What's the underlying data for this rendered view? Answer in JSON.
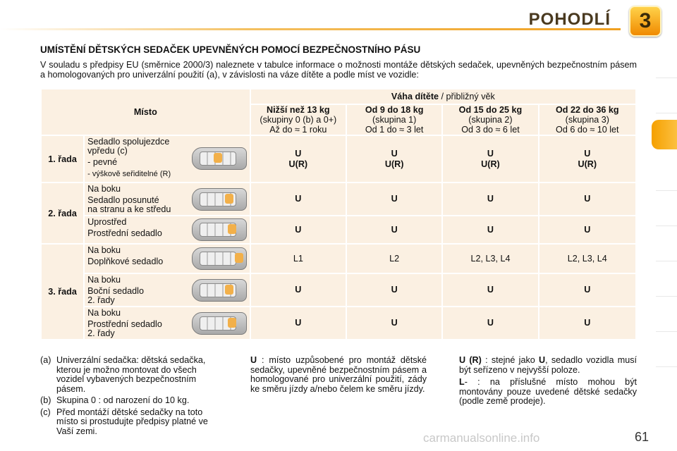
{
  "header": {
    "title": "POHODLÍ",
    "chapter": "3"
  },
  "section_title": "UMÍSTĚNÍ DĚTSKÝCH SEDAČEK UPEVNĚNÝCH POMOCÍ BEZPEČNOSTNÍHO PÁSU",
  "intro": "V souladu s předpisy EU (směrnice 2000/3) naleznete v tabulce informace o možnosti montáže dětských sedaček, upevněných bezpečnostním pásem a homologovaných pro univerzální použití (a), v závislosti na váze dítěte a podle míst ve vozidle:",
  "table": {
    "place_header": "Místo",
    "weight_title_bold": "Váha dítěte",
    "weight_title_rest": " / přibližný věk",
    "columns": [
      {
        "title": "Nižší než 13 kg",
        "group": "(skupiny 0 (b) a 0+)",
        "age": "Až do ≈ 1 roku"
      },
      {
        "title": "Od 9 do 18 kg",
        "group": "(skupina 1)",
        "age": "Od 1 do ≈ 3 let"
      },
      {
        "title": "Od 15 do 25 kg",
        "group": "(skupina 2)",
        "age": "Od 3 do ≈ 6 let"
      },
      {
        "title": "Od 22 do 36 kg",
        "group": "(skupina 3)",
        "age": "Od 6 do ≈ 10 let"
      }
    ],
    "row1": {
      "label": "1. řada",
      "seat_l1": "Sedadlo spolujezdce",
      "seat_l2": "vpředu (c)",
      "seat_l3": "- pevné",
      "seat_l4": "- výškově seřiditelné (R)",
      "v_top": [
        "U",
        "U",
        "U",
        "U"
      ],
      "v_bottom": [
        "U(R)",
        "U(R)",
        "U(R)",
        "U(R)"
      ]
    },
    "row2": {
      "label": "2. řada",
      "a_l1": "Na boku",
      "a_l2": "Sedadlo posunuté",
      "a_l3": "na stranu a ke středu",
      "a_values": [
        "U",
        "U",
        "U",
        "U"
      ],
      "b_l1": "Uprostřed",
      "b_l2": "Prostřední sedadlo",
      "b_values": [
        "U",
        "U",
        "U",
        "U"
      ]
    },
    "row3": {
      "label": "3. řada",
      "a_l1": "Na boku",
      "a_l2": "Doplňkové sedadlo",
      "a_values": [
        "L1",
        "L2",
        "L2, L3, L4",
        "L2, L3, L4"
      ],
      "b_l1": "Na boku",
      "b_l2": "Boční sedadlo",
      "b_l3": "2. řady",
      "b_values": [
        "U",
        "U",
        "U",
        "U"
      ],
      "c_l1": "Na boku",
      "c_l2": "Prostřední sedadlo",
      "c_l3": "2. řady",
      "c_values": [
        "U",
        "U",
        "U",
        "U"
      ]
    }
  },
  "footnotes": [
    {
      "key": "(a)",
      "text": "Univerzální sedačka: dětská sedačka, kterou je možno montovat do všech vozidel vybavených bezpečnostním pásem."
    },
    {
      "key": "(b)",
      "text": "Skupina 0 : od narození do 10 kg."
    },
    {
      "key": "(c)",
      "text": "Před montáží dětské sedačky na toto místo si prostudujte předpisy platné ve Vaší zemi."
    }
  ],
  "legend": {
    "u_key": "U",
    "u_text": " : místo uzpůsobené pro montáž dětské sedačky, upevněné bezpečnostním pásem a homologované pro univerzální použití, zády ke směru jízdy a/nebo čelem ke směru jízdy.",
    "ur_key": "U (R)",
    "ur_text_a": " : stejné jako ",
    "ur_text_u": "U",
    "ur_text_b": ", sedadlo vozidla musí být seřízeno v nejvyšší poloze.",
    "l_key": "L",
    "l_text": "- : na příslušné místo mohou být montovány pouze uvedené dětské sedačky (podle země prodeje)."
  },
  "page_number": "61",
  "watermark": "carmanualsonline.info"
}
